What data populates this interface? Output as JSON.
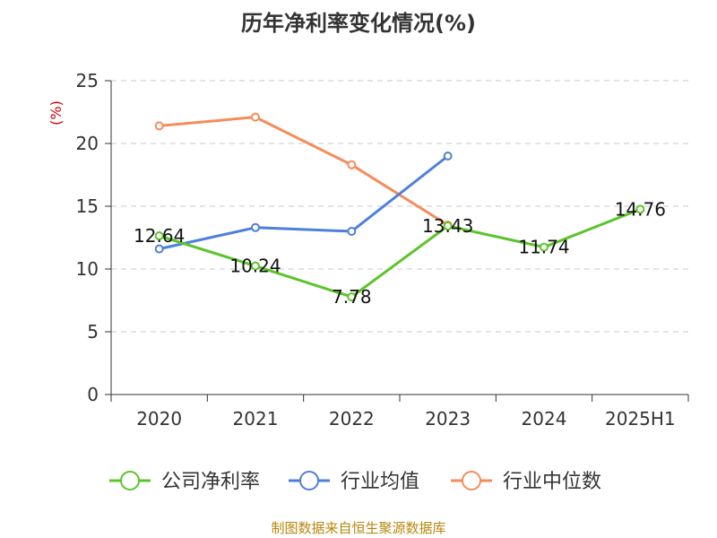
{
  "chart_data": {
    "type": "line",
    "title": "历年净利率变化情况(%)",
    "ylabel": "(%)",
    "categories": [
      "2020",
      "2021",
      "2022",
      "2023",
      "2024",
      "2025H1"
    ],
    "ylim": [
      0,
      25
    ],
    "yticks": [
      0,
      5,
      10,
      15,
      20,
      25
    ],
    "grid": true,
    "legend_position": "bottom",
    "series": [
      {
        "name": "公司净利率",
        "color": "#5cc42b",
        "values": [
          12.64,
          10.24,
          7.78,
          13.43,
          11.74,
          14.76
        ],
        "labels": [
          "12.64",
          "10.24",
          "7.78",
          "13.43",
          "11.74",
          "14.76"
        ]
      },
      {
        "name": "行业均值",
        "color": "#4e7fdb",
        "values": [
          11.6,
          13.3,
          13.0,
          19.0,
          null,
          null
        ]
      },
      {
        "name": "行业中位数",
        "color": "#f58c5a",
        "values": [
          21.4,
          22.1,
          18.3,
          13.5,
          null,
          null
        ]
      }
    ]
  },
  "source": "制图数据来自恒生聚源数据库"
}
